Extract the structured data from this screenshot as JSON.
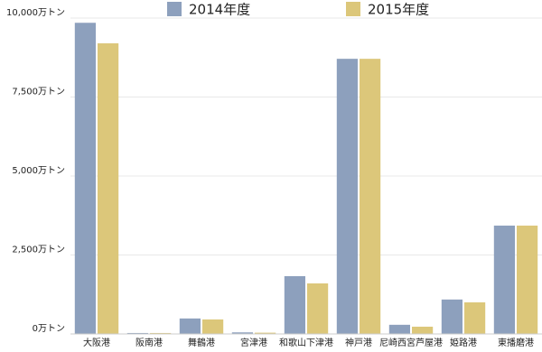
{
  "chart_data": {
    "type": "bar",
    "categories": [
      "大阪港",
      "阪南港",
      "舞鶴港",
      "宮津港",
      "和歌山下津港",
      "神戸港",
      "尼崎西宮芦屋港",
      "姫路港",
      "東播磨港"
    ],
    "series": [
      {
        "name": "2014年度",
        "color": "#8da0bd",
        "values": [
          9850,
          30,
          490,
          50,
          1830,
          8710,
          290,
          1090,
          3430
        ]
      },
      {
        "name": "2015年度",
        "color": "#dcc77a",
        "values": [
          9200,
          30,
          460,
          40,
          1600,
          8710,
          230,
          1000,
          3430
        ]
      }
    ],
    "ylim": [
      0,
      10000
    ],
    "yticks": [
      {
        "value": 0,
        "label": "0万トン"
      },
      {
        "value": 2500,
        "label": "2,500万トン"
      },
      {
        "value": 5000,
        "label": "5,000万トン"
      },
      {
        "value": 7500,
        "label": "7,500万トン"
      },
      {
        "value": 10000,
        "label": "10,000万トン"
      }
    ],
    "grid": true
  }
}
